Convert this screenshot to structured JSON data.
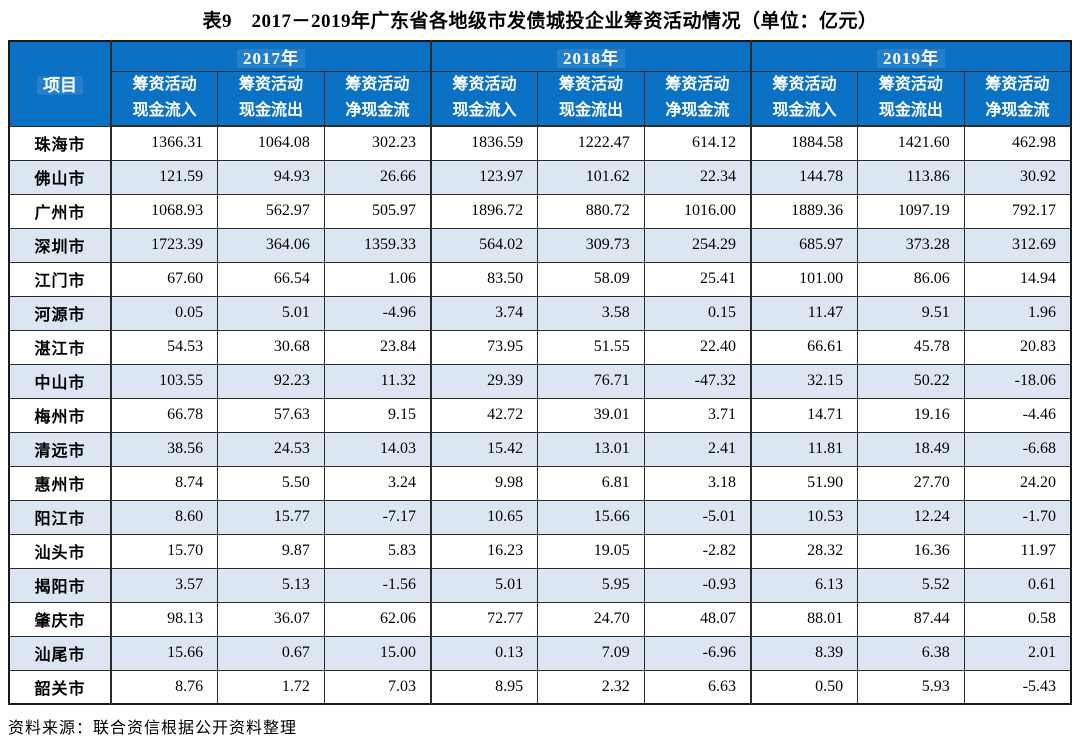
{
  "title": "表9　2017－2019年广东省各地级市发债城投企业筹资活动情况（单位：亿元）",
  "source_note": "资料来源：联合资信根据公开资料整理",
  "colors": {
    "header_bg": "#0b71c4",
    "header_text": "#ffffff",
    "stripe_bg": "#dce6f2",
    "border": "#2b2b2b",
    "outer_border": "#1a1a1a"
  },
  "table": {
    "item_header": "项目",
    "year_groups": [
      {
        "label": "2017年",
        "sub_headers": [
          "筹资活动\n现金流入",
          "筹资活动\n现金流出",
          "筹资活动\n净现金流"
        ]
      },
      {
        "label": "2018年",
        "sub_headers": [
          "筹资活动\n现金流入",
          "筹资活动\n现金流出",
          "筹资活动\n净现金流"
        ]
      },
      {
        "label": "2019年",
        "sub_headers": [
          "筹资活动\n现金流入",
          "筹资活动\n现金流出",
          "筹资活动\n净现金流"
        ]
      }
    ],
    "rows": [
      {
        "city": "珠海市",
        "values": [
          "1366.31",
          "1064.08",
          "302.23",
          "1836.59",
          "1222.47",
          "614.12",
          "1884.58",
          "1421.60",
          "462.98"
        ]
      },
      {
        "city": "佛山市",
        "values": [
          "121.59",
          "94.93",
          "26.66",
          "123.97",
          "101.62",
          "22.34",
          "144.78",
          "113.86",
          "30.92"
        ]
      },
      {
        "city": "广州市",
        "values": [
          "1068.93",
          "562.97",
          "505.97",
          "1896.72",
          "880.72",
          "1016.00",
          "1889.36",
          "1097.19",
          "792.17"
        ]
      },
      {
        "city": "深圳市",
        "values": [
          "1723.39",
          "364.06",
          "1359.33",
          "564.02",
          "309.73",
          "254.29",
          "685.97",
          "373.28",
          "312.69"
        ]
      },
      {
        "city": "江门市",
        "values": [
          "67.60",
          "66.54",
          "1.06",
          "83.50",
          "58.09",
          "25.41",
          "101.00",
          "86.06",
          "14.94"
        ]
      },
      {
        "city": "河源市",
        "values": [
          "0.05",
          "5.01",
          "-4.96",
          "3.74",
          "3.58",
          "0.15",
          "11.47",
          "9.51",
          "1.96"
        ]
      },
      {
        "city": "湛江市",
        "values": [
          "54.53",
          "30.68",
          "23.84",
          "73.95",
          "51.55",
          "22.40",
          "66.61",
          "45.78",
          "20.83"
        ]
      },
      {
        "city": "中山市",
        "values": [
          "103.55",
          "92.23",
          "11.32",
          "29.39",
          "76.71",
          "-47.32",
          "32.15",
          "50.22",
          "-18.06"
        ]
      },
      {
        "city": "梅州市",
        "values": [
          "66.78",
          "57.63",
          "9.15",
          "42.72",
          "39.01",
          "3.71",
          "14.71",
          "19.16",
          "-4.46"
        ]
      },
      {
        "city": "清远市",
        "values": [
          "38.56",
          "24.53",
          "14.03",
          "15.42",
          "13.01",
          "2.41",
          "11.81",
          "18.49",
          "-6.68"
        ]
      },
      {
        "city": "惠州市",
        "values": [
          "8.74",
          "5.50",
          "3.24",
          "9.98",
          "6.81",
          "3.18",
          "51.90",
          "27.70",
          "24.20"
        ]
      },
      {
        "city": "阳江市",
        "values": [
          "8.60",
          "15.77",
          "-7.17",
          "10.65",
          "15.66",
          "-5.01",
          "10.53",
          "12.24",
          "-1.70"
        ]
      },
      {
        "city": "汕头市",
        "values": [
          "15.70",
          "9.87",
          "5.83",
          "16.23",
          "19.05",
          "-2.82",
          "28.32",
          "16.36",
          "11.97"
        ]
      },
      {
        "city": "揭阳市",
        "values": [
          "3.57",
          "5.13",
          "-1.56",
          "5.01",
          "5.95",
          "-0.93",
          "6.13",
          "5.52",
          "0.61"
        ]
      },
      {
        "city": "肇庆市",
        "values": [
          "98.13",
          "36.07",
          "62.06",
          "72.77",
          "24.70",
          "48.07",
          "88.01",
          "87.44",
          "0.58"
        ]
      },
      {
        "city": "汕尾市",
        "values": [
          "15.66",
          "0.67",
          "15.00",
          "0.13",
          "7.09",
          "-6.96",
          "8.39",
          "6.38",
          "2.01"
        ]
      },
      {
        "city": "韶关市",
        "values": [
          "8.76",
          "1.72",
          "7.03",
          "8.95",
          "2.32",
          "6.63",
          "0.50",
          "5.93",
          "-5.43"
        ]
      }
    ]
  }
}
